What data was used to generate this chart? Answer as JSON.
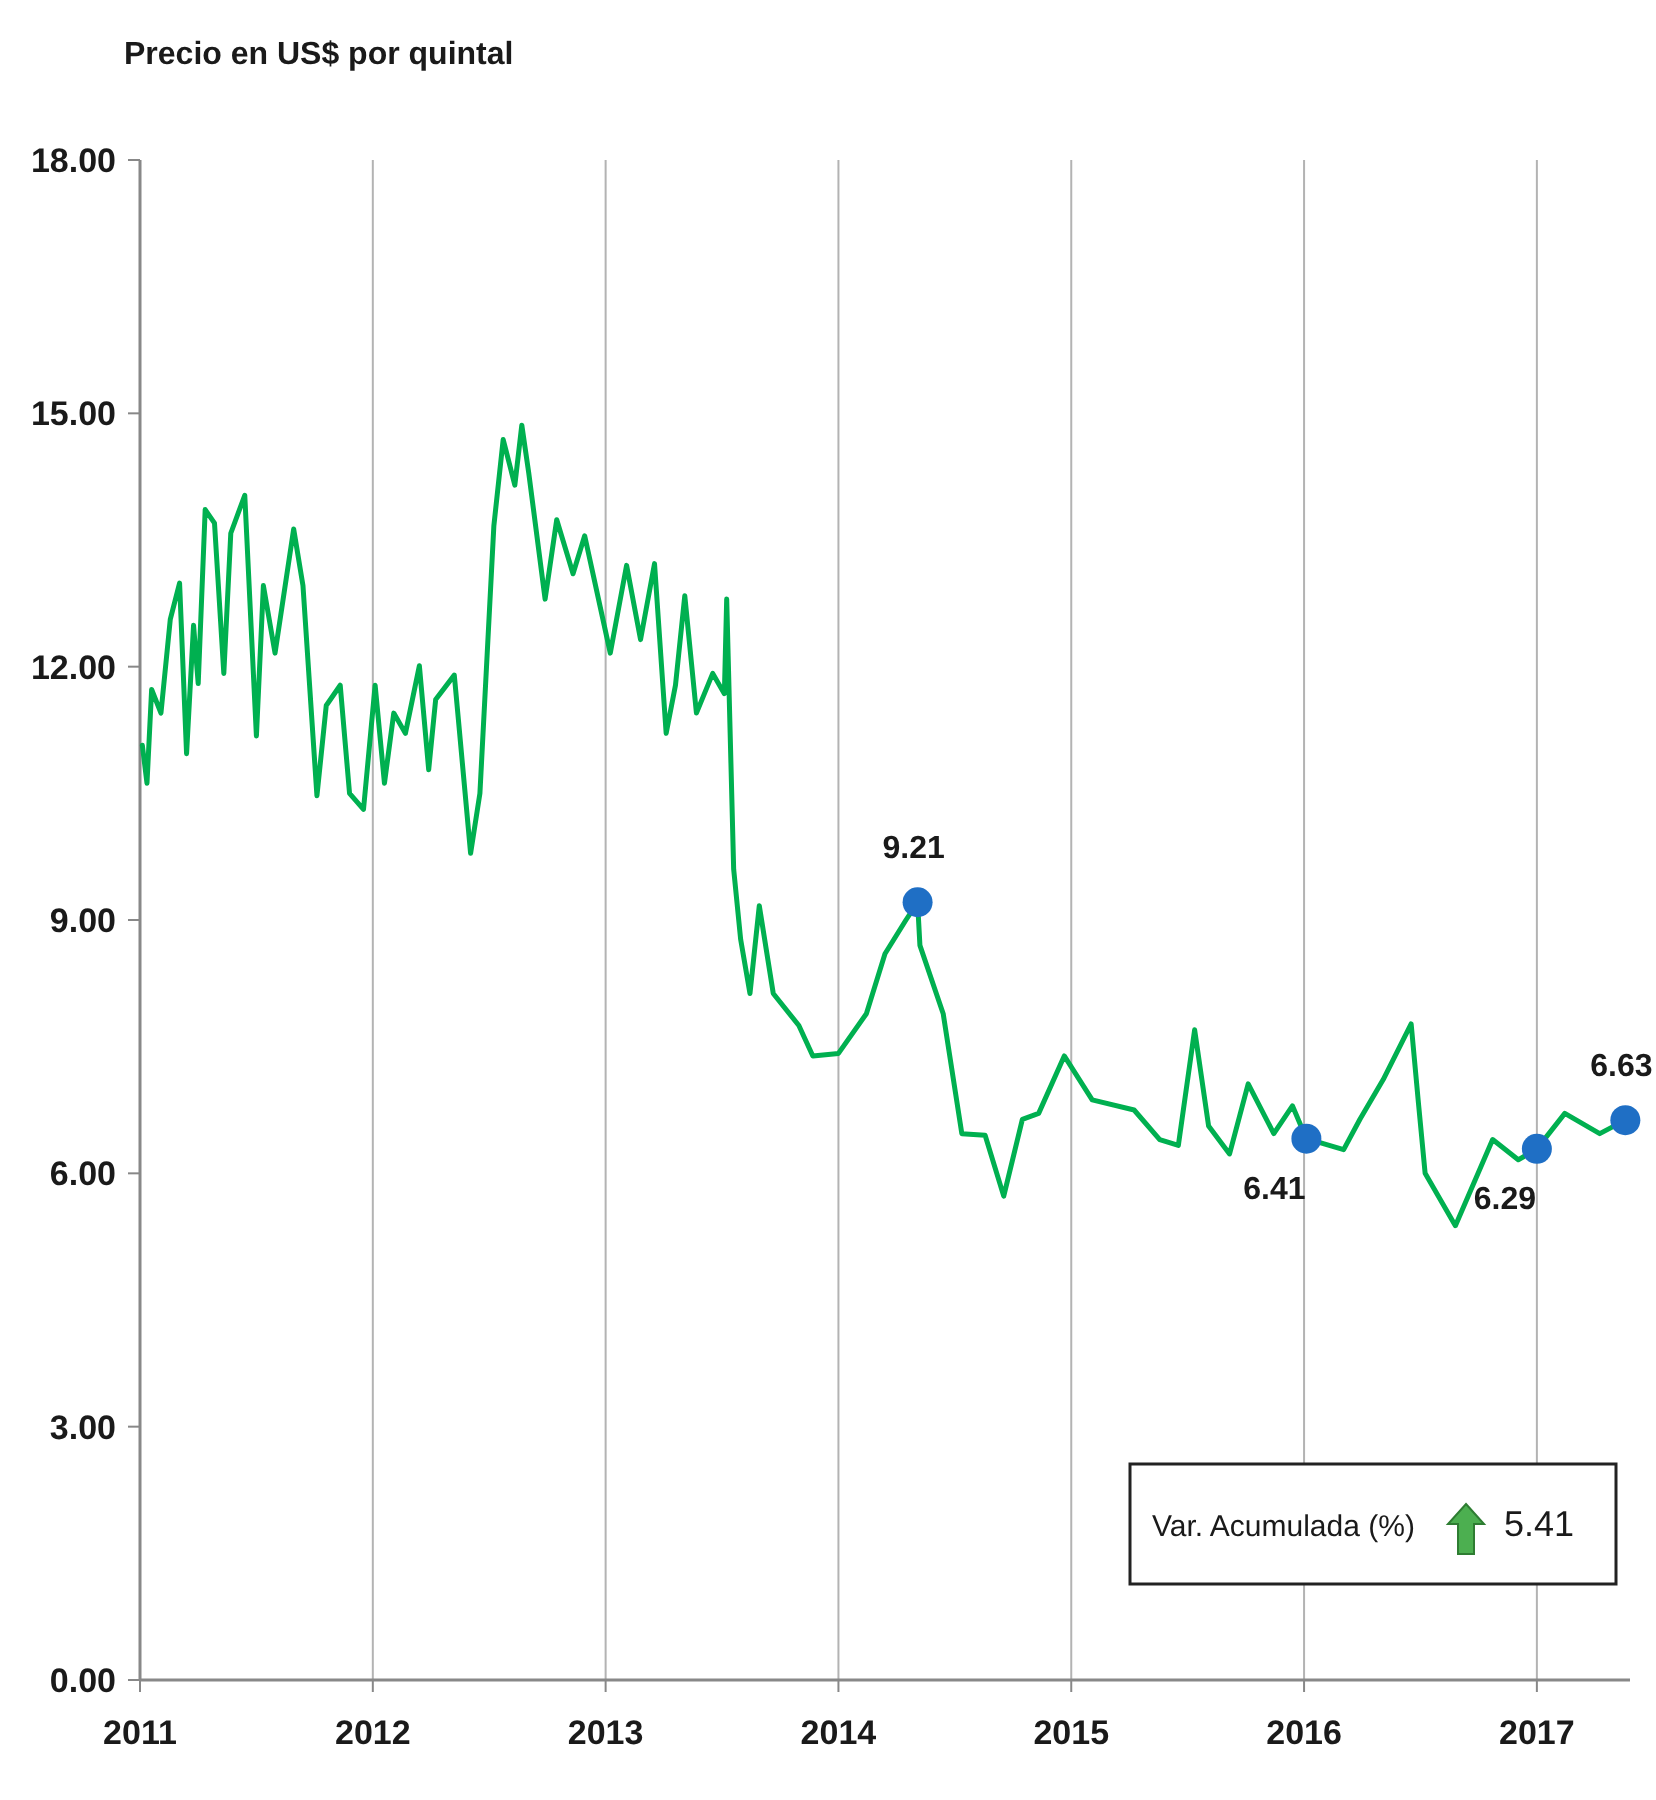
{
  "chart_data": {
    "type": "line",
    "ylabel": "Precio en US$ por quintal",
    "xlim": [
      2011,
      2017.4
    ],
    "xticks": [
      2011,
      2012,
      2013,
      2014,
      2015,
      2016,
      2017
    ],
    "ylim": [
      0,
      18
    ],
    "yticks": [
      {
        "value": 0,
        "label": "0.00"
      },
      {
        "value": 3,
        "label": "3.00"
      },
      {
        "value": 6,
        "label": "6.00"
      },
      {
        "value": 9,
        "label": "9.00"
      },
      {
        "value": 12,
        "label": "12.00"
      },
      {
        "value": 15,
        "label": "15.00"
      },
      {
        "value": 18,
        "label": "18.00"
      }
    ],
    "grid": "x",
    "marker": "none",
    "line_style": "solid",
    "series": [
      {
        "color": "#00b050",
        "x": [
          2011.01,
          2011.03,
          2011.05,
          2011.09,
          2011.13,
          2011.17,
          2011.2,
          2011.23,
          2011.25,
          2011.28,
          2011.32,
          2011.36,
          2011.39,
          2011.45,
          2011.5,
          2011.53,
          2011.58,
          2011.66,
          2011.7,
          2011.76,
          2011.8,
          2011.86,
          2011.9,
          2011.96,
          2012.01,
          2012.05,
          2012.09,
          2012.14,
          2012.2,
          2012.24,
          2012.27,
          2012.35,
          2012.37,
          2012.42,
          2012.46,
          2012.52,
          2012.56,
          2012.61,
          2012.64,
          2012.67,
          2012.74,
          2012.79,
          2012.86,
          2012.91,
          2013.02,
          2013.09,
          2013.15,
          2013.21,
          2013.26,
          2013.3,
          2013.34,
          2013.39,
          2013.46,
          2013.51,
          2013.52,
          2013.55,
          2013.58,
          2013.62,
          2013.66,
          2013.72,
          2013.83,
          2013.89,
          2014.0,
          2014.12,
          2014.2,
          2014.29,
          2014.34,
          2014.35,
          2014.45,
          2014.53,
          2014.63,
          2014.71,
          2014.79,
          2014.86,
          2014.97,
          2015.09,
          2015.27,
          2015.38,
          2015.46,
          2015.53,
          2015.59,
          2015.68,
          2015.76,
          2015.87,
          2015.95,
          2016.01,
          2016.17,
          2016.24,
          2016.34,
          2016.46,
          2016.49,
          2016.52,
          2016.65,
          2016.81,
          2016.92,
          2017.0,
          2017.12,
          2017.27,
          2017.38
        ],
        "values": [
          11.07,
          10.62,
          11.73,
          11.45,
          12.56,
          12.99,
          10.97,
          12.49,
          11.8,
          13.86,
          13.7,
          11.92,
          13.58,
          14.03,
          11.18,
          12.96,
          12.16,
          13.63,
          12.96,
          10.47,
          11.54,
          11.78,
          10.5,
          10.31,
          11.78,
          10.62,
          11.45,
          11.21,
          12.01,
          10.78,
          11.61,
          11.9,
          11.3,
          9.79,
          10.5,
          13.67,
          14.69,
          14.15,
          14.86,
          14.29,
          12.8,
          13.74,
          13.1,
          13.55,
          12.16,
          13.2,
          12.32,
          13.22,
          11.21,
          11.78,
          12.84,
          11.45,
          11.92,
          11.68,
          12.8,
          9.6,
          8.77,
          8.13,
          9.17,
          8.13,
          7.75,
          7.39,
          7.42,
          7.89,
          8.6,
          9.0,
          9.21,
          8.7,
          7.89,
          6.47,
          6.45,
          5.73,
          6.64,
          6.71,
          7.39,
          6.87,
          6.75,
          6.4,
          6.33,
          7.7,
          6.56,
          6.23,
          7.06,
          6.47,
          6.8,
          6.41,
          6.28,
          6.64,
          7.11,
          7.77,
          6.87,
          6.0,
          5.38,
          6.4,
          6.16,
          6.29,
          6.71,
          6.47,
          6.63
        ]
      },
      {
        "type": "scatter",
        "color": "#1f6fc5",
        "marker": "circle",
        "x": [
          2014.34,
          2016.01,
          2017.0,
          2017.38
        ],
        "values": [
          9.21,
          6.41,
          6.29,
          6.63
        ],
        "value_labels": [
          "9.21",
          "6.41",
          "6.29",
          "6.63"
        ]
      }
    ],
    "annotations": [
      "Var. Acumulada (%)",
      "5.41"
    ]
  }
}
